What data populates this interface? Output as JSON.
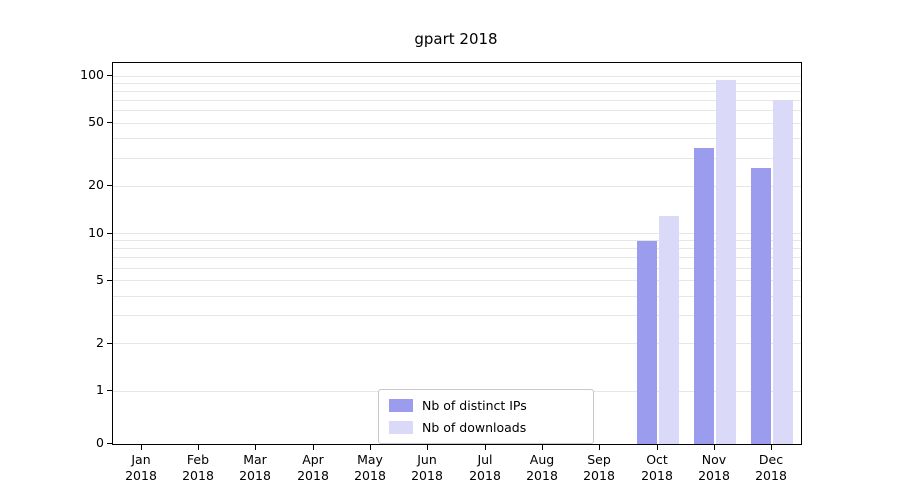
{
  "title": "gpart 2018",
  "colors": {
    "ips": "#9c9cee",
    "downloads": "#dadaf8",
    "grid": "#e6e6e6",
    "axis": "#000000",
    "legend_border": "#c9c9c9"
  },
  "y_axis": {
    "major_ticks": [
      0,
      1,
      2,
      5,
      10,
      20,
      50,
      100
    ],
    "minor_gridlines": [
      1,
      2,
      3,
      4,
      5,
      6,
      7,
      8,
      9,
      10,
      20,
      30,
      40,
      50,
      60,
      70,
      80,
      90,
      100
    ]
  },
  "chart_data": {
    "type": "bar",
    "title": "gpart 2018",
    "yscale": "symlog",
    "ylim": [
      0,
      120
    ],
    "grid": true,
    "legend_position": "lower center",
    "categories": [
      "Jan 2018",
      "Feb 2018",
      "Mar 2018",
      "Apr 2018",
      "May 2018",
      "Jun 2018",
      "Jul 2018",
      "Aug 2018",
      "Sep 2018",
      "Oct 2018",
      "Nov 2018",
      "Dec 2018"
    ],
    "series": [
      {
        "name": "Nb of distinct IPs",
        "color": "#9c9cee",
        "values": [
          0,
          0,
          0,
          0,
          0,
          0,
          0,
          0,
          0,
          9,
          35,
          26
        ]
      },
      {
        "name": "Nb of downloads",
        "color": "#dadaf8",
        "values": [
          0,
          0,
          0,
          0,
          0,
          0,
          0,
          0,
          0,
          13,
          95,
          70
        ]
      }
    ]
  }
}
